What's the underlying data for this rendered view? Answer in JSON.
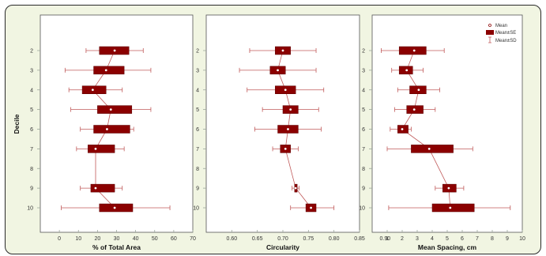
{
  "chart_data": {
    "type": "box",
    "y_axis": {
      "label": "Decile",
      "categories": [
        "2",
        "3",
        "4",
        "5",
        "6",
        "7",
        "8",
        "9",
        "10"
      ]
    },
    "legend": {
      "placement": "top-right of third panel",
      "entries": [
        "Mean",
        "Mean±SE",
        "Mean±SD"
      ]
    },
    "colors": {
      "box_fill": "#8b0000",
      "whisker": "#c05a5a",
      "panel_background": "#ffffff",
      "page_background": "#f1f5e2",
      "tick_color": "#9aa59a"
    },
    "panels": [
      {
        "xlabel": "% of Total Area",
        "xlim": [
          -10,
          70
        ],
        "xticks": [
          "0",
          "10",
          "20",
          "30",
          "40",
          "50",
          "60",
          "70"
        ],
        "xtick_values": [
          0,
          10,
          20,
          30,
          40,
          50,
          60,
          70
        ],
        "series": [
          {
            "decile": "2",
            "mean": 29,
            "se": [
              21,
              36.5
            ],
            "sd": [
              14,
              44
            ]
          },
          {
            "decile": "3",
            "mean": 24.5,
            "se": [
              18,
              34
            ],
            "sd": [
              3,
              48
            ]
          },
          {
            "decile": "4",
            "mean": 17.5,
            "se": [
              12,
              24.5
            ],
            "sd": [
              5,
              33
            ]
          },
          {
            "decile": "5",
            "mean": 27,
            "se": [
              20,
              38
            ],
            "sd": [
              6,
              48
            ]
          },
          {
            "decile": "6",
            "mean": 25,
            "se": [
              18,
              37
            ],
            "sd": [
              11,
              39
            ]
          },
          {
            "decile": "7",
            "mean": 19,
            "se": [
              15,
              29
            ],
            "sd": [
              9,
              34
            ]
          },
          {
            "decile": "9",
            "mean": 19,
            "se": [
              16.5,
              29
            ],
            "sd": [
              11,
              33
            ]
          },
          {
            "decile": "10",
            "mean": 29,
            "se": [
              21,
              38.5
            ],
            "sd": [
              1,
              58
            ]
          }
        ]
      },
      {
        "xlabel": "Circularity",
        "xlim": [
          0.55,
          0.85
        ],
        "xticks": [
          "0.60",
          "0.65",
          "0.70",
          "0.75",
          "0.80",
          "0.85",
          "0.90"
        ],
        "xtick_values": [
          0.6,
          0.65,
          0.7,
          0.75,
          0.8,
          0.85,
          0.9
        ],
        "series": [
          {
            "decile": "2",
            "mean": 0.7,
            "se": [
              0.685,
              0.715
            ],
            "sd": [
              0.635,
              0.765
            ]
          },
          {
            "decile": "3",
            "mean": 0.69,
            "se": [
              0.675,
              0.705
            ],
            "sd": [
              0.615,
              0.765
            ]
          },
          {
            "decile": "4",
            "mean": 0.705,
            "se": [
              0.685,
              0.725
            ],
            "sd": [
              0.63,
              0.78
            ]
          },
          {
            "decile": "5",
            "mean": 0.715,
            "se": [
              0.7,
              0.73
            ],
            "sd": [
              0.66,
              0.77
            ]
          },
          {
            "decile": "6",
            "mean": 0.71,
            "se": [
              0.69,
              0.73
            ],
            "sd": [
              0.645,
              0.775
            ]
          },
          {
            "decile": "7",
            "mean": 0.705,
            "se": [
              0.695,
              0.715
            ],
            "sd": [
              0.68,
              0.73
            ]
          },
          {
            "decile": "9",
            "mean": 0.725,
            "se": [
              0.723,
              0.728
            ],
            "sd": [
              0.718,
              0.732
            ]
          },
          {
            "decile": "10",
            "mean": 0.755,
            "se": [
              0.745,
              0.765
            ],
            "sd": [
              0.715,
              0.8
            ]
          }
        ]
      },
      {
        "xlabel": "Mean Spacing, cm",
        "xlim": [
          0,
          10
        ],
        "xticks": [
          "1",
          "2",
          "3",
          "4",
          "5",
          "6",
          "7",
          "8",
          "9",
          "10"
        ],
        "xtick_values": [
          1,
          2,
          3,
          4,
          5,
          6,
          7,
          8,
          9,
          10
        ],
        "series": [
          {
            "decile": "2",
            "mean": 2.8,
            "se": [
              1.8,
              3.6
            ],
            "sd": [
              0.6,
              4.8
            ]
          },
          {
            "decile": "3",
            "mean": 2.3,
            "se": [
              1.8,
              2.7
            ],
            "sd": [
              1.3,
              3.4
            ]
          },
          {
            "decile": "4",
            "mean": 3.1,
            "se": [
              2.5,
              3.6
            ],
            "sd": [
              1.7,
              4.5
            ]
          },
          {
            "decile": "5",
            "mean": 2.8,
            "se": [
              2.3,
              3.4
            ],
            "sd": [
              1.5,
              4.2
            ]
          },
          {
            "decile": "6",
            "mean": 2,
            "se": [
              1.7,
              2.4
            ],
            "sd": [
              1.2,
              2.6
            ]
          },
          {
            "decile": "7",
            "mean": 3.8,
            "se": [
              2.6,
              5.4
            ],
            "sd": [
              1,
              6.7
            ]
          },
          {
            "decile": "9",
            "mean": 5.1,
            "se": [
              4.7,
              5.6
            ],
            "sd": [
              4.2,
              6.1
            ]
          },
          {
            "decile": "10",
            "mean": 5.2,
            "se": [
              4,
              6.8
            ],
            "sd": [
              1.1,
              9.2
            ]
          }
        ]
      }
    ]
  }
}
